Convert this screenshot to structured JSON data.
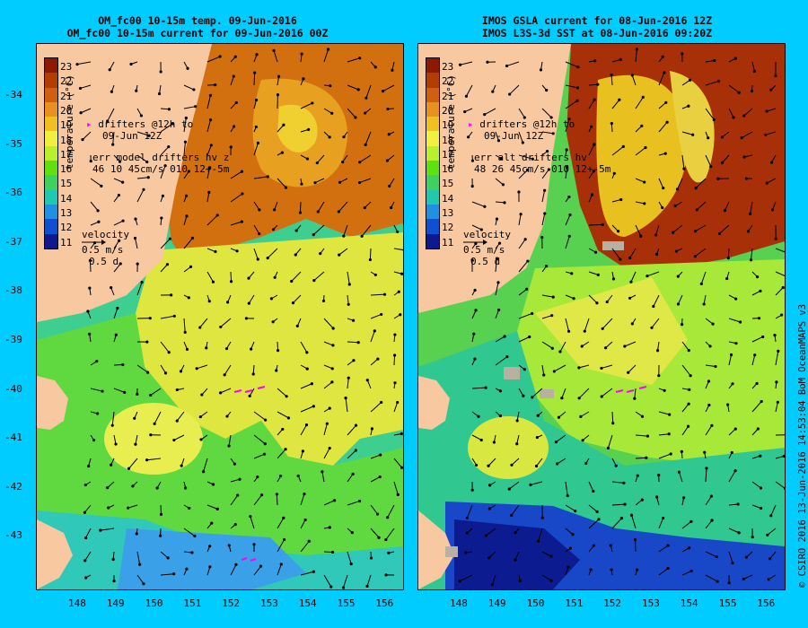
{
  "left": {
    "title1": "OM_fc00 10-15m temp. 09-Jun-2016",
    "title2": "OM_fc00 10-15m current for 09-Jun-2016 00Z",
    "drifter1": "drifters @12h to",
    "drifter2": "09-Jun 12Z",
    "err1": "err model drifters hv z",
    "err2": "46 10 45cm/s 010 12+-5m"
  },
  "right": {
    "title1": "IMOS GSLA current for 08-Jun-2016 12Z",
    "title2": "IMOS L3S-3d SST at 08-Jun-2016 09:20Z",
    "drifter1": "drifters @12h to",
    "drifter2": "09-Jun 12Z",
    "err1": "err alt drifters hv",
    "err2": "48 26 45cm/s 010 12+-5m"
  },
  "colorbar": {
    "label": "temperature (°C)",
    "ticks": [
      "23",
      "22",
      "21",
      "20",
      "19",
      "18",
      "17",
      "16",
      "15",
      "14",
      "13",
      "12",
      "11"
    ],
    "colors": [
      "#8b1a00",
      "#b33c00",
      "#d06010",
      "#e89020",
      "#f0c020",
      "#f0f040",
      "#b8f030",
      "#60e010",
      "#40d060",
      "#20c8b0",
      "#2090e0",
      "#1050d0",
      "#101890"
    ]
  },
  "velocity": {
    "label": "velocity",
    "speed": "0.5 m/s",
    "time": "0.5 d"
  },
  "y_ticks": [
    "-34",
    "-35",
    "-36",
    "-37",
    "-38",
    "-39",
    "-40",
    "-41",
    "-42",
    "-43"
  ],
  "x_ticks": [
    "148",
    "149",
    "150",
    "151",
    "152",
    "153",
    "154",
    "155",
    "156"
  ],
  "credit": "© CSIRO 2016  13-Jun-2016 14:53:04 BoM OceanMAPS v3",
  "colors": {
    "land": "#f8c8a0",
    "background": "#00ccff",
    "drifter": "#ff00ff"
  }
}
